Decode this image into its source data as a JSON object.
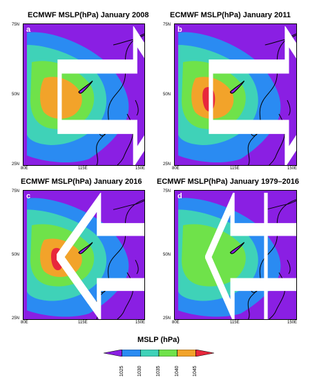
{
  "panels": [
    {
      "title": "ECMWF MSLP(hPa) January 2008",
      "letter": "a",
      "arrow": "right",
      "level": 1
    },
    {
      "title": "ECMWF MSLP(hPa) January 2011",
      "letter": "b",
      "arrow": "right",
      "level": 2
    },
    {
      "title": "ECMWF MSLP(hPa) January 2016",
      "letter": "c",
      "arrow": "left",
      "level": 3
    },
    {
      "title": "ECMWF MSLP(hPa) January 1979–2016",
      "letter": "d",
      "arrow": "both",
      "level": 0
    }
  ],
  "axes": {
    "lat_ticks": [
      "75N",
      "50N",
      "25N"
    ],
    "lon_ticks": [
      "80E",
      "115E",
      "150E"
    ]
  },
  "legend": {
    "title": "MSLP (hPa)",
    "ticks": [
      "1025",
      "1030",
      "1035",
      "1040",
      "1045"
    ],
    "colors": [
      "#8a1fe3",
      "#2a8bf2",
      "#3fd2b8",
      "#6fe24a",
      "#f2a32a",
      "#e8283c"
    ]
  },
  "colors": {
    "background": "#8a1fe3",
    "blue": "#2a8bf2",
    "teal": "#3fd2b8",
    "green": "#6fe24a",
    "orange": "#f2a32a",
    "red": "#e8283c",
    "coast": "#000000"
  }
}
